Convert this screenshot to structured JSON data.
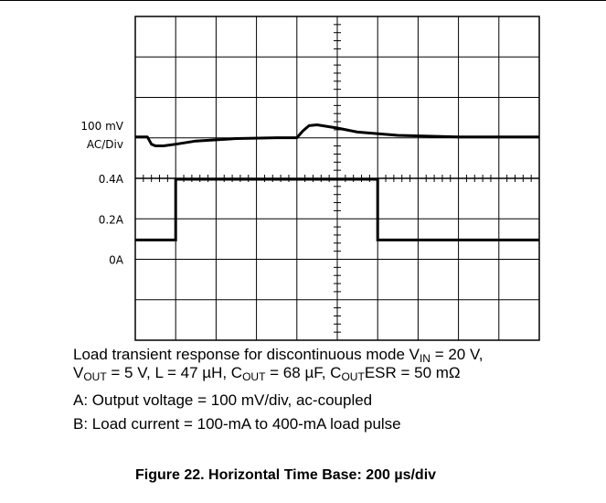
{
  "chart_data": [
    {
      "type": "line",
      "name": "Output voltage (channel A)",
      "scale_labels": [
        "100 mV",
        "AC/Div"
      ],
      "x_divisions": 10,
      "time_per_division": "200 µs/div",
      "x_unit": "µs",
      "y_unit": "mV",
      "series": [
        {
          "values_note": "ac-coupled output voltage deviation",
          "x": [
            0,
            60,
            80,
            100,
            140,
            200,
            300,
            500,
            700,
            800,
            830,
            860,
            900,
            1000,
            1100,
            1300,
            1600,
            2000
          ],
          "y": [
            0,
            0,
            -18,
            -22,
            -22,
            -18,
            -10,
            -4,
            -2,
            -2,
            15,
            28,
            30,
            22,
            12,
            4,
            0,
            0
          ]
        }
      ],
      "grid": true
    },
    {
      "type": "line",
      "name": "Load current (channel B)",
      "ytick_labels": [
        "0.4A",
        "0.2A",
        "0A"
      ],
      "x_divisions": 10,
      "x_unit": "µs",
      "y_unit": "A",
      "series": [
        {
          "x": [
            0,
            200,
            200,
            1200,
            1200,
            2000
          ],
          "y": [
            0.1,
            0.1,
            0.4,
            0.4,
            0.1,
            0.1
          ]
        }
      ],
      "grid": true
    }
  ],
  "caption": {
    "line1": "Load transient response for discontinuous mode V",
    "line1_sub": "IN",
    "line1_end": " = 20 V,",
    "line2_a": "V",
    "line2_sub1": "OUT",
    "line2_b": " = 5 V, L = 47 µH, C",
    "line2_sub2": "OUT",
    "line2_c": " = 68 µF, C",
    "line2_sub3": "OUT",
    "line2_d": "ESR = 50 mΩ",
    "line3": "A: Output voltage = 100 mV/div, ac-coupled",
    "line4": "B: Load current = 100-mA to 400-mA load pulse"
  },
  "figure_title": "Figure 22. Horizontal Time Base: 200 µs/div"
}
